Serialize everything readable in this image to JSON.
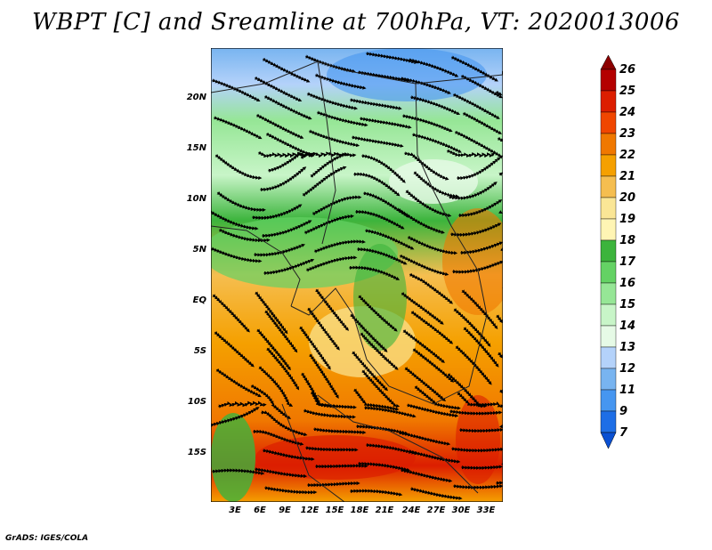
{
  "title": "WBPT [C] and Sreamline at 700hPa, VT: 2020013006",
  "credit": "GrADS: IGES/COLA",
  "map": {
    "lat_labels": [
      "20N",
      "15N",
      "10N",
      "5N",
      "EQ",
      "5S",
      "10S",
      "15S"
    ],
    "lon_labels": [
      "3E",
      "6E",
      "9E",
      "12E",
      "15E",
      "18E",
      "21E",
      "24E",
      "27E",
      "30E",
      "33E"
    ]
  },
  "colorbar": {
    "labels": [
      "26",
      "25",
      "24",
      "23",
      "22",
      "21",
      "20",
      "19",
      "18",
      "17",
      "16",
      "15",
      "14",
      "13",
      "12",
      "11",
      "9",
      "7"
    ],
    "colors": [
      "#8c0000",
      "#b40000",
      "#dc1e00",
      "#f04600",
      "#f07800",
      "#f5a000",
      "#f5be50",
      "#fae696",
      "#fff5b4",
      "#3cb43c",
      "#64d264",
      "#96e696",
      "#c8f5c8",
      "#e6fae6",
      "#b4d2fa",
      "#78b4f0",
      "#4696f0",
      "#1e6ee6",
      "#0a50d2"
    ]
  }
}
